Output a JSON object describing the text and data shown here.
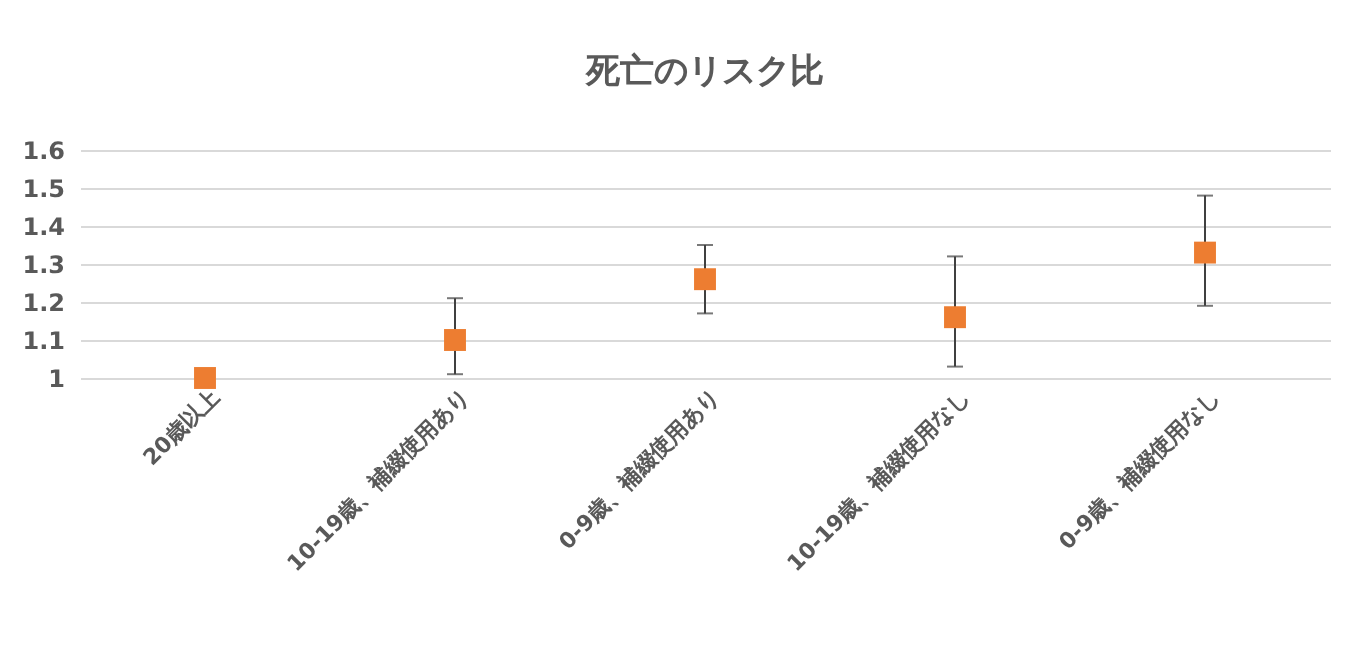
{
  "chart_data": {
    "type": "scatter",
    "title": "死亡のリスク比",
    "categories": [
      "20歳以上",
      "10-19歳、補綴使用あり",
      "0-9歳、補綴使用あり",
      "10-19歳、補綴使用なし",
      "0-9歳、補綴使用なし"
    ],
    "series": [
      {
        "color": "#ed7d31",
        "values": [
          1.0,
          1.1,
          1.26,
          1.16,
          1.33
        ],
        "errors": [
          null,
          [
            1.01,
            1.21
          ],
          [
            1.17,
            1.35
          ],
          [
            1.03,
            1.32
          ],
          [
            1.19,
            1.48
          ]
        ]
      }
    ],
    "ylim": [
      1,
      1.6
    ],
    "yticks": [
      1,
      1.1,
      1.2,
      1.3,
      1.4,
      1.5,
      1.6
    ],
    "grid": "y",
    "legend": false,
    "marker": "square"
  }
}
